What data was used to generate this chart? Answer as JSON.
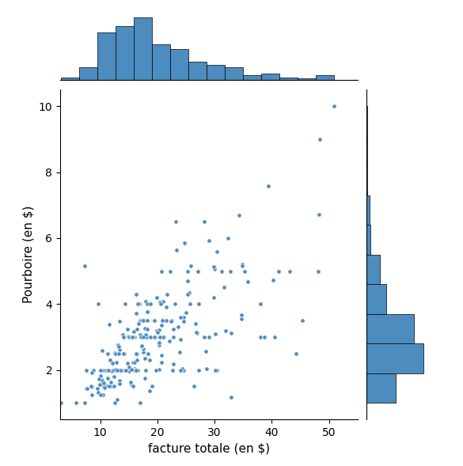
{
  "xlabel": "facture totale (en $)",
  "ylabel": "Pourboire (en $)",
  "scatter_color": "#4c8cbf",
  "hist_color": "#4c8cbf",
  "scatter_alpha": 1.0,
  "scatter_size": 15,
  "hist_bins_x": 15,
  "hist_bins_y": 10,
  "scatter_edgecolor": "white",
  "scatter_linewidth": 0.5,
  "xlim": [
    3,
    55
  ],
  "ylim": [
    0.5,
    10.5
  ],
  "xticks": [
    10,
    20,
    30,
    40,
    50
  ],
  "yticks": [
    2,
    4,
    6,
    8,
    10
  ],
  "xlabel_fontsize": 11,
  "ylabel_fontsize": 11,
  "tick_fontsize": 10
}
